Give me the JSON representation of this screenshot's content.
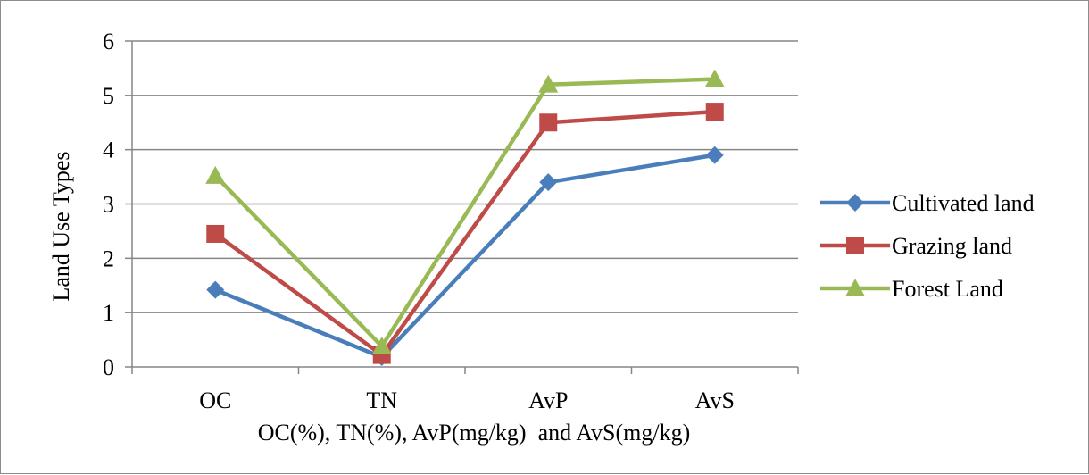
{
  "chart_data": {
    "type": "line",
    "title": "",
    "xlabel": "OC(%), TN(%), AvP(mg/kg)  and AvS(mg/kg)",
    "ylabel": "Land Use Types",
    "categories": [
      "OC",
      "TN",
      "AvP",
      "AvS"
    ],
    "ylim": [
      0,
      6
    ],
    "yticks": [
      0,
      1,
      2,
      3,
      4,
      5,
      6
    ],
    "grid": true,
    "legend_position": "right",
    "series": [
      {
        "name": "Cultivated land",
        "values": [
          1.42,
          0.18,
          3.4,
          3.9
        ],
        "color": "#4a7ebb",
        "marker": "diamond"
      },
      {
        "name": "Grazing land",
        "values": [
          2.45,
          0.22,
          4.5,
          4.7
        ],
        "color": "#be4b48",
        "marker": "square"
      },
      {
        "name": "Forest Land",
        "values": [
          3.52,
          0.38,
          5.2,
          5.3
        ],
        "color": "#98b954",
        "marker": "triangle"
      }
    ]
  }
}
